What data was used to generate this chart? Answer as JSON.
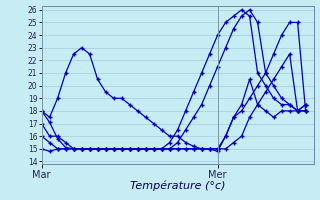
{
  "xlabel": "Température (°c)",
  "background_color": "#c8ecf4",
  "grid_color": "#a8ccd8",
  "line_color": "#0000bb",
  "ylim": [
    13.8,
    26.3
  ],
  "xlim": [
    0,
    34
  ],
  "yticks": [
    14,
    15,
    16,
    17,
    18,
    19,
    20,
    21,
    22,
    23,
    24,
    25,
    26
  ],
  "xtick_positions": [
    0,
    22
  ],
  "xtick_labels": [
    "Mar",
    "Mer"
  ],
  "series": [
    {
      "x": [
        0,
        1,
        2,
        3,
        4,
        5,
        6,
        7,
        8,
        9,
        10,
        11,
        12,
        13,
        14,
        15,
        16,
        17,
        18,
        19,
        20,
        21,
        22,
        23,
        24,
        25,
        26,
        27,
        28,
        29,
        30,
        31,
        32,
        33
      ],
      "y": [
        18,
        17.1,
        15.8,
        15.1,
        15.0,
        15.0,
        15.0,
        15.0,
        15.0,
        15.0,
        15.0,
        15.0,
        15.0,
        15.0,
        15.0,
        15.0,
        15.0,
        15.0,
        15.0,
        15.0,
        15.0,
        15.0,
        15.0,
        16.0,
        17.5,
        18.0,
        19.0,
        20.0,
        21.0,
        22.5,
        24.0,
        25.0,
        25.0,
        18.0
      ]
    },
    {
      "x": [
        0,
        1,
        2,
        3,
        4,
        5,
        6,
        7,
        8,
        9,
        10,
        11,
        12,
        13,
        14,
        15,
        16,
        17,
        18,
        19,
        20,
        21,
        22,
        23,
        24,
        25,
        26,
        27,
        28,
        29,
        30,
        31,
        32,
        33
      ],
      "y": [
        17,
        16.0,
        16.0,
        15.5,
        15.0,
        15.0,
        15.0,
        15.0,
        15.0,
        15.0,
        15.0,
        15.0,
        15.0,
        15.0,
        15.0,
        15.0,
        15.0,
        15.5,
        16.5,
        17.5,
        18.5,
        20.0,
        21.5,
        23.0,
        24.5,
        25.5,
        26.0,
        25.0,
        21.0,
        20.0,
        19.0,
        18.5,
        18.0,
        18.5
      ]
    },
    {
      "x": [
        0,
        1,
        2,
        3,
        4,
        5,
        6,
        7,
        8,
        9,
        10,
        11,
        12,
        13,
        14,
        15,
        16,
        17,
        18,
        19,
        20,
        21,
        22,
        23,
        24,
        25,
        26,
        27,
        28,
        29,
        30,
        31,
        32,
        33
      ],
      "y": [
        16,
        15.5,
        15.0,
        15.0,
        15.0,
        15.0,
        15.0,
        15.0,
        15.0,
        15.0,
        15.0,
        15.0,
        15.0,
        15.0,
        15.0,
        15.0,
        15.5,
        16.5,
        18.0,
        19.5,
        21.0,
        22.5,
        24.0,
        25.0,
        25.5,
        26.0,
        25.5,
        21.0,
        20.0,
        19.0,
        18.5,
        18.5,
        18.0,
        18.0
      ]
    },
    {
      "x": [
        0,
        1,
        2,
        3,
        4,
        5,
        6,
        7,
        8,
        9,
        10,
        11,
        12,
        13,
        14,
        15,
        16,
        17,
        18,
        19,
        20,
        21,
        22,
        23,
        24,
        25,
        26,
        27,
        28,
        29,
        30,
        31,
        32,
        33
      ],
      "y": [
        15,
        14.8,
        15.0,
        15.0,
        15.0,
        15.0,
        15.0,
        15.0,
        15.0,
        15.0,
        15.0,
        15.0,
        15.0,
        15.0,
        15.0,
        15.0,
        15.0,
        15.0,
        15.0,
        15.0,
        15.0,
        15.0,
        15.0,
        15.0,
        15.5,
        16.0,
        17.5,
        18.5,
        19.5,
        20.5,
        21.5,
        22.5,
        18.0,
        18.0
      ]
    },
    {
      "x": [
        0,
        1,
        2,
        3,
        4,
        5,
        6,
        7,
        8,
        9,
        10,
        11,
        12,
        13,
        14,
        15,
        16,
        17,
        18,
        19,
        20,
        21,
        22,
        23,
        24,
        25,
        26,
        27,
        28,
        29,
        30,
        31,
        32,
        33
      ],
      "y": [
        18,
        17.5,
        19.0,
        21.0,
        22.5,
        23.0,
        22.5,
        20.5,
        19.5,
        19.0,
        19.0,
        18.5,
        18.0,
        17.5,
        17.0,
        16.5,
        16.0,
        16.0,
        15.5,
        15.2,
        15.0,
        15.0,
        14.8,
        16.0,
        17.5,
        18.5,
        20.5,
        18.5,
        18.0,
        17.5,
        18.0,
        18.0,
        18.0,
        18.5
      ]
    }
  ]
}
